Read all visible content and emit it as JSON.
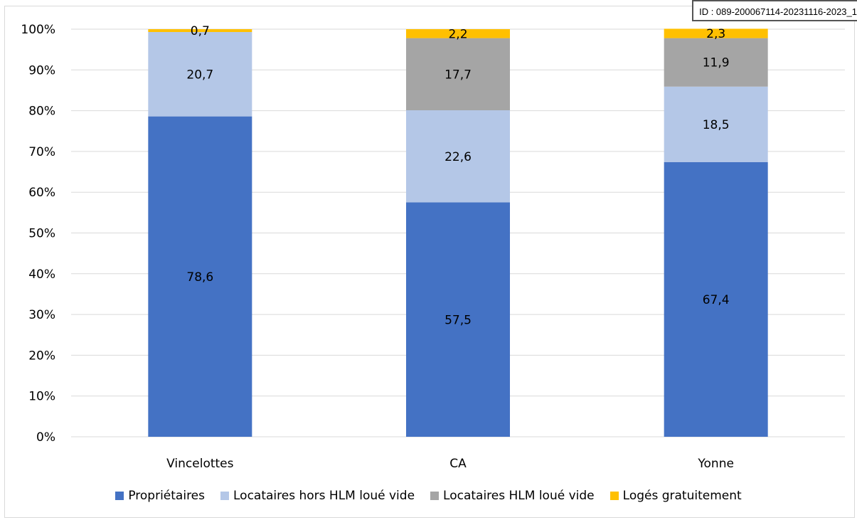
{
  "stamp_text": "ID : 089-200067114-20231116-2023_1",
  "chart_data": {
    "type": "bar",
    "stacked": true,
    "categories": [
      "Vincelottes",
      "CA",
      "Yonne"
    ],
    "series": [
      {
        "name": "Propriétaires",
        "color": "#4472c4",
        "values": [
          78.6,
          57.5,
          67.4
        ],
        "labels": [
          "78,6",
          "57,5",
          "67,4"
        ]
      },
      {
        "name": "Locataires hors HLM loué vide",
        "color": "#b4c7e7",
        "values": [
          20.7,
          22.6,
          18.5
        ],
        "labels": [
          "20,7",
          "22,6",
          "18,5"
        ]
      },
      {
        "name": "Locataires HLM loué vide",
        "color": "#a5a5a5",
        "values": [
          0,
          17.7,
          11.9
        ],
        "labels": [
          "",
          "17,7",
          "11,9"
        ]
      },
      {
        "name": "Logés gratuitement",
        "color": "#ffc000",
        "values": [
          0.7,
          2.2,
          2.3
        ],
        "labels": [
          "0,7",
          "2,2",
          "2,3"
        ]
      }
    ],
    "y_ticks": [
      "0%",
      "10%",
      "20%",
      "30%",
      "40%",
      "50%",
      "60%",
      "70%",
      "80%",
      "90%",
      "100%"
    ],
    "ylim": [
      0,
      100
    ],
    "grid": true,
    "legend_position": "bottom"
  }
}
